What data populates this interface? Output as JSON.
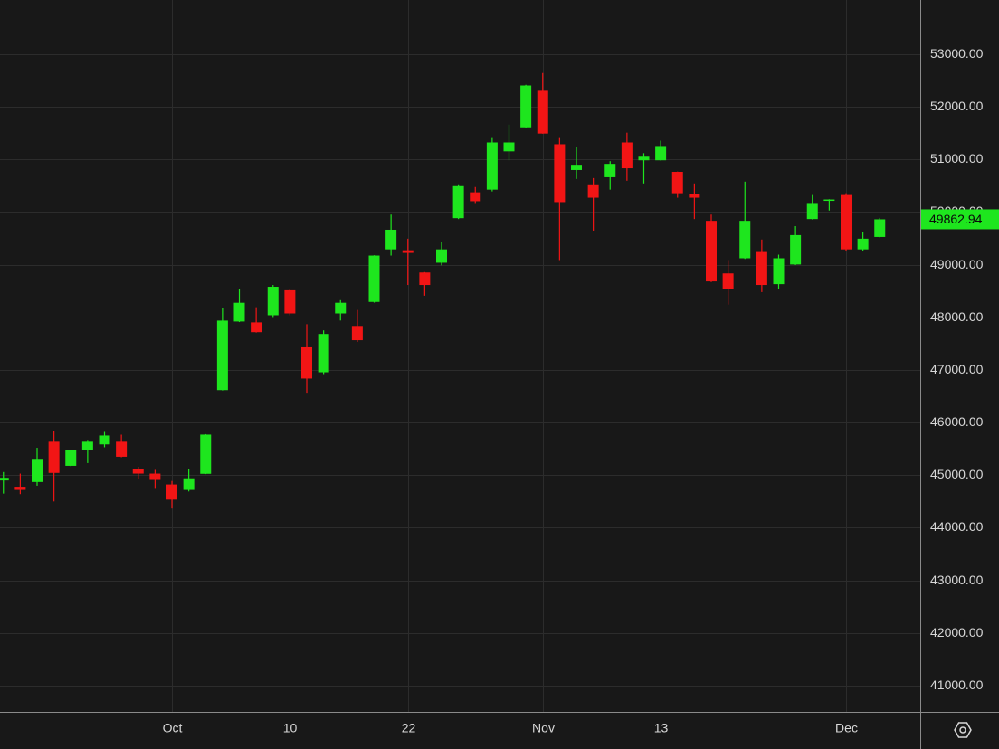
{
  "chart_data": {
    "type": "candlestick",
    "categories": [
      null,
      null,
      null,
      null,
      null,
      null,
      null,
      null,
      null,
      null,
      "Oct",
      null,
      null,
      null,
      null,
      null,
      null,
      "10",
      null,
      null,
      null,
      null,
      null,
      null,
      "22",
      null,
      null,
      null,
      null,
      null,
      null,
      null,
      "Nov",
      null,
      null,
      null,
      null,
      null,
      null,
      "13",
      null,
      null,
      null,
      null,
      null,
      null,
      null,
      null,
      null,
      null,
      "Dec",
      null,
      null
    ],
    "series": [
      {
        "up_color": "#1ee61e",
        "down_color": "#f21515",
        "open": [
          44900,
          44780,
          44870,
          45635,
          45178,
          45480,
          45585,
          45635,
          45110,
          45030,
          44823,
          44720,
          45026,
          46617,
          47921,
          47904,
          48040,
          48514,
          47430,
          46956,
          48074,
          47837,
          48293,
          49292,
          49275,
          48852,
          49038,
          49885,
          50376,
          50427,
          51155,
          51612,
          52306,
          51290,
          50800,
          50528,
          50663,
          51324,
          50985,
          50985,
          50765,
          50342,
          49834,
          48835,
          49123,
          49242,
          48631,
          49005,
          49868,
          50230,
          50325,
          49292,
          49528
        ],
        "high": [
          45060,
          45030,
          45520,
          45839,
          45483,
          45670,
          45822,
          45770,
          45160,
          45100,
          44890,
          45110,
          45780,
          48175,
          48530,
          48192,
          48615,
          48540,
          47870,
          47752,
          48327,
          48141,
          49180,
          49953,
          49495,
          48860,
          49428,
          50528,
          50477,
          51408,
          51663,
          52420,
          52644,
          51408,
          51240,
          50647,
          50968,
          51510,
          51120,
          51358,
          50770,
          50545,
          49953,
          49089,
          50579,
          49479,
          49191,
          49733,
          50325,
          50245,
          50359,
          49614,
          49890
        ],
        "low": [
          44650,
          44640,
          44800,
          44501,
          45170,
          45230,
          45530,
          45340,
          44930,
          44740,
          44366,
          44690,
          45020,
          46610,
          47910,
          47710,
          48006,
          48040,
          46550,
          46922,
          47940,
          47532,
          48280,
          49174,
          48615,
          48412,
          48988,
          49868,
          50173,
          50393,
          50985,
          51600,
          51490,
          49089,
          50630,
          49648,
          50427,
          50596,
          50545,
          50980,
          50274,
          49868,
          48670,
          48243,
          49110,
          48480,
          48530,
          48995,
          49860,
          50030,
          49258,
          49258,
          49520
        ],
        "close": [
          44950,
          44720,
          45310,
          45043,
          45483,
          45635,
          45754,
          45350,
          45030,
          44910,
          44535,
          44941,
          45771,
          47938,
          48277,
          47718,
          48581,
          48074,
          46837,
          47684,
          48277,
          47566,
          49174,
          49665,
          49225,
          48615,
          49292,
          50494,
          50207,
          51324,
          51324,
          52407,
          51493,
          50190,
          50900,
          50274,
          50917,
          50833,
          51053,
          51256,
          50359,
          50274,
          48683,
          48530,
          49834,
          48615,
          49123,
          49563,
          50173,
          50240,
          49292,
          49495,
          49862.94
        ]
      }
    ],
    "last_price": 49862.94,
    "last_price_color": "#1ee61e",
    "ylim": [
      40500,
      54032
    ],
    "yticks": [
      {
        "value": 41000,
        "label": "41000.00"
      },
      {
        "value": 42000,
        "label": "42000.00"
      },
      {
        "value": 43000,
        "label": "43000.00"
      },
      {
        "value": 44000,
        "label": "44000.00"
      },
      {
        "value": 45000,
        "label": "45000.00"
      },
      {
        "value": 46000,
        "label": "46000.00"
      },
      {
        "value": 47000,
        "label": "47000.00"
      },
      {
        "value": 48000,
        "label": "48000.00"
      },
      {
        "value": 49000,
        "label": "49000.00"
      },
      {
        "value": 50000,
        "label": "50000.00"
      },
      {
        "value": 51000,
        "label": "51000.00"
      },
      {
        "value": 52000,
        "label": "52000.00"
      },
      {
        "value": 53000,
        "label": "53000.00"
      }
    ],
    "grid": true
  }
}
